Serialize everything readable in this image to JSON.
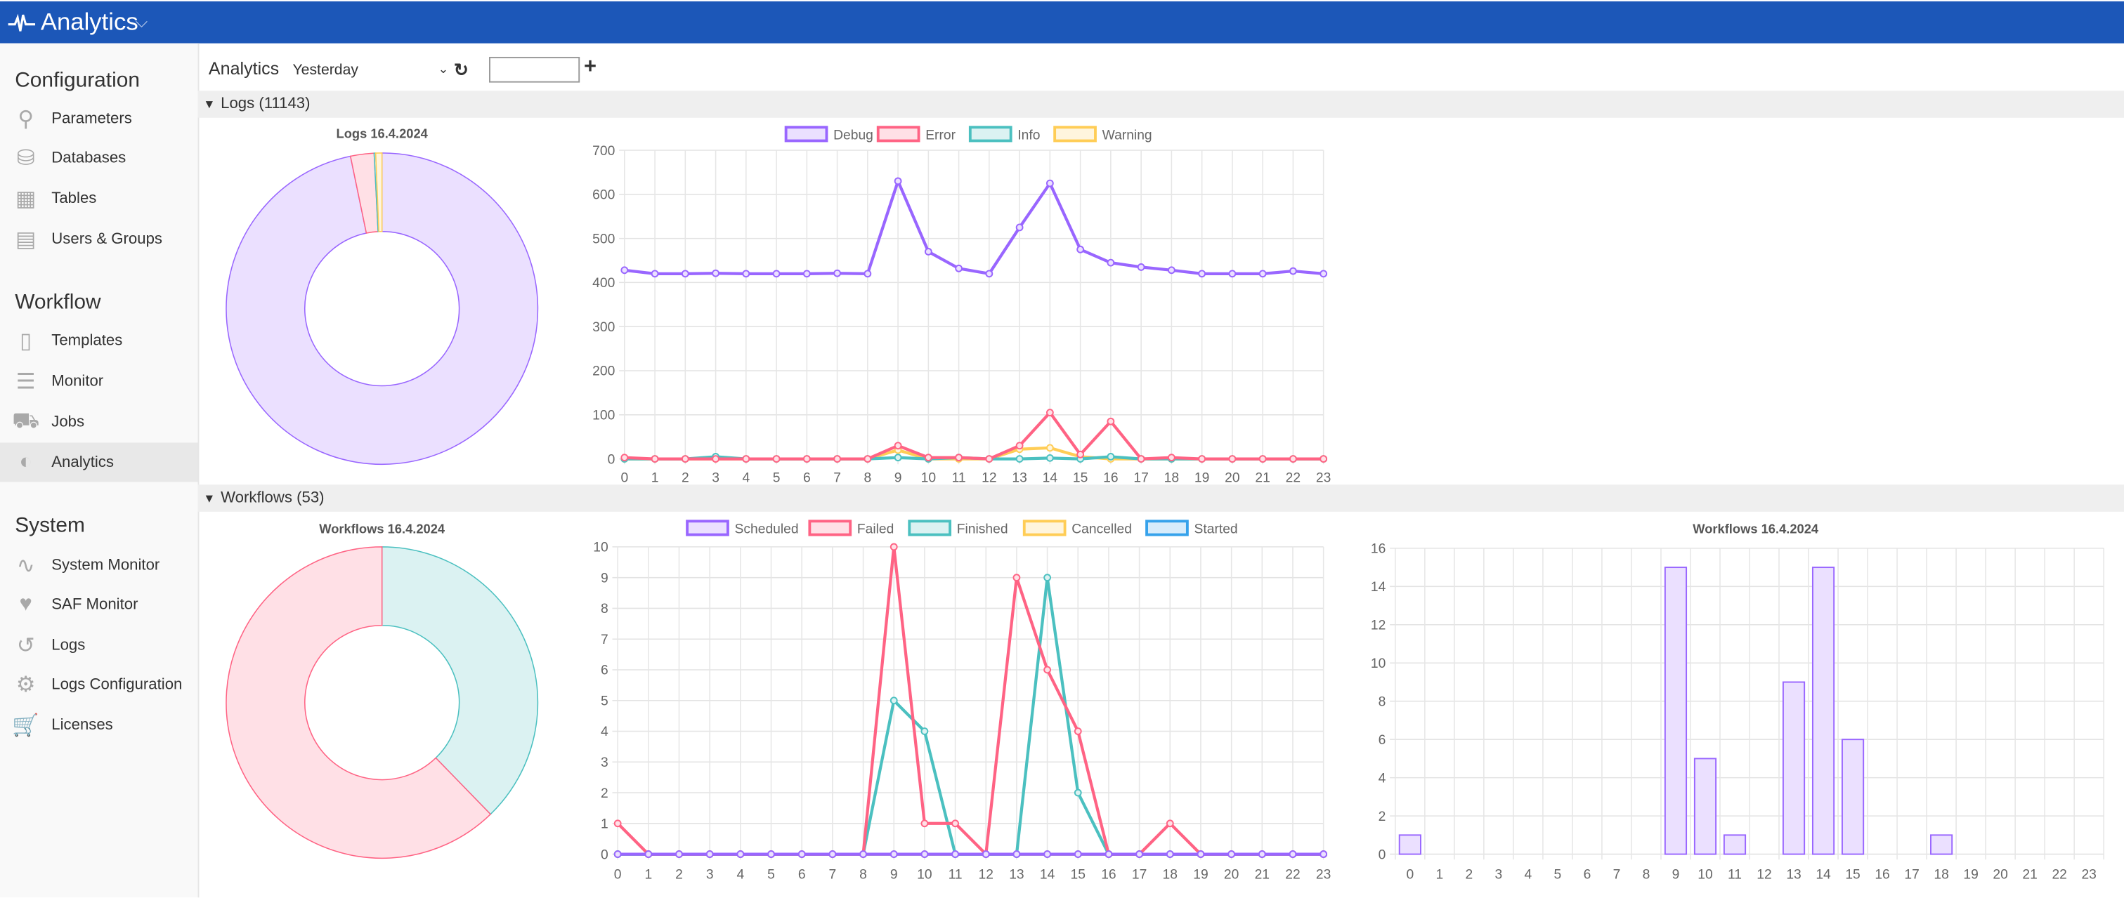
{
  "header": {
    "title": "Analytics",
    "icon": "pulse-icon",
    "color": "#1c57b8"
  },
  "sidebar": {
    "sections": [
      {
        "title": "Configuration",
        "items": [
          {
            "label": "Parameters",
            "icon": "key-icon"
          },
          {
            "label": "Databases",
            "icon": "database-icon"
          },
          {
            "label": "Tables",
            "icon": "table-icon"
          },
          {
            "label": "Users & Groups",
            "icon": "id-card-icon"
          }
        ]
      },
      {
        "title": "Workflow",
        "items": [
          {
            "label": "Templates",
            "icon": "chip-icon"
          },
          {
            "label": "Monitor",
            "icon": "server-icon"
          },
          {
            "label": "Jobs",
            "icon": "taxi-icon"
          },
          {
            "label": "Analytics",
            "icon": "dashboard-icon",
            "active": true
          }
        ]
      },
      {
        "title": "System",
        "items": [
          {
            "label": "System Monitor",
            "icon": "pulse-icon"
          },
          {
            "label": "SAF Monitor",
            "icon": "heartbeat-icon"
          },
          {
            "label": "Logs",
            "icon": "history-icon"
          },
          {
            "label": "Logs Configuration",
            "icon": "gear-icon"
          },
          {
            "label": "Licenses",
            "icon": "cart-icon"
          }
        ]
      }
    ]
  },
  "toolbar": {
    "label": "Analytics",
    "range": "Yesterday",
    "date_value": ""
  },
  "sections": {
    "logs": "Logs (11143)",
    "workflows": "Workflows (53)"
  },
  "chart_data": [
    {
      "id": "logs-donut",
      "type": "pie",
      "title": "Logs 16.4.2024",
      "donut": true,
      "slices": [
        {
          "value": 10781,
          "color": "#9966ff",
          "fill": "#ebe0ff"
        },
        {
          "value": 272,
          "color": "#ff6384",
          "fill": "#ffe0e6"
        },
        {
          "value": 18,
          "color": "#4bc0c0",
          "fill": "#dbf2f2"
        },
        {
          "value": 72,
          "color": "#ffcd56",
          "fill": "#fff5dd"
        }
      ]
    },
    {
      "id": "logs-line",
      "type": "line",
      "title": "",
      "categories": [
        "0",
        "1",
        "2",
        "3",
        "4",
        "5",
        "6",
        "7",
        "8",
        "9",
        "10",
        "11",
        "12",
        "13",
        "14",
        "15",
        "16",
        "17",
        "18",
        "19",
        "20",
        "21",
        "22",
        "23"
      ],
      "ylim": [
        0,
        700
      ],
      "ystep": 100,
      "grid": true,
      "legend": "top",
      "series": [
        {
          "name": "Debug",
          "color": "#9966ff",
          "fill": "#ebe0ff",
          "values": [
            428,
            420,
            420,
            421,
            420,
            420,
            420,
            421,
            420,
            630,
            470,
            432,
            420,
            525,
            625,
            475,
            445,
            435,
            428,
            420,
            420,
            420,
            426,
            420
          ]
        },
        {
          "name": "Error",
          "color": "#ff6384",
          "fill": "#ffe0e6",
          "values": [
            3,
            0,
            0,
            0,
            0,
            0,
            0,
            0,
            0,
            30,
            3,
            3,
            0,
            30,
            105,
            10,
            85,
            0,
            3,
            0,
            0,
            0,
            0,
            0
          ]
        },
        {
          "name": "Info",
          "color": "#4bc0c0",
          "fill": "#dbf2f2",
          "values": [
            0,
            0,
            0,
            5,
            0,
            0,
            0,
            0,
            0,
            3,
            0,
            3,
            0,
            0,
            2,
            0,
            5,
            0,
            0,
            0,
            0,
            0,
            0,
            0
          ]
        },
        {
          "name": "Warning",
          "color": "#ffcd56",
          "fill": "#fff5dd",
          "values": [
            0,
            0,
            0,
            0,
            0,
            0,
            0,
            0,
            0,
            20,
            0,
            0,
            0,
            22,
            25,
            5,
            0,
            0,
            0,
            0,
            0,
            0,
            0,
            0
          ]
        }
      ]
    },
    {
      "id": "workflows-donut",
      "type": "pie",
      "title": "Workflows 16.4.2024",
      "donut": true,
      "slices": [
        {
          "value": 20,
          "color": "#4bc0c0",
          "fill": "#dbf2f2"
        },
        {
          "value": 33,
          "color": "#ff6384",
          "fill": "#ffe0e6"
        }
      ]
    },
    {
      "id": "workflows-line",
      "type": "line",
      "title": "",
      "categories": [
        "0",
        "1",
        "2",
        "3",
        "4",
        "5",
        "6",
        "7",
        "8",
        "9",
        "10",
        "11",
        "12",
        "13",
        "14",
        "15",
        "16",
        "17",
        "18",
        "19",
        "20",
        "21",
        "22",
        "23"
      ],
      "ylim": [
        0,
        10
      ],
      "ystep": 1,
      "grid": true,
      "legend": "top",
      "series": [
        {
          "name": "Scheduled",
          "color": "#9966ff",
          "fill": "#ebe0ff",
          "values": [
            0,
            0,
            0,
            0,
            0,
            0,
            0,
            0,
            0,
            0,
            0,
            0,
            0,
            0,
            0,
            0,
            0,
            0,
            0,
            0,
            0,
            0,
            0,
            0
          ]
        },
        {
          "name": "Failed",
          "color": "#ff6384",
          "fill": "#ffe0e6",
          "values": [
            1,
            0,
            0,
            0,
            0,
            0,
            0,
            0,
            0,
            10,
            1,
            1,
            0,
            9,
            6,
            4,
            0,
            0,
            1,
            0,
            0,
            0,
            0,
            0
          ]
        },
        {
          "name": "Finished",
          "color": "#4bc0c0",
          "fill": "#dbf2f2",
          "values": [
            0,
            0,
            0,
            0,
            0,
            0,
            0,
            0,
            0,
            5,
            4,
            0,
            0,
            0,
            9,
            2,
            0,
            0,
            0,
            0,
            0,
            0,
            0,
            0
          ]
        },
        {
          "name": "Cancelled",
          "color": "#ffcd56",
          "fill": "#fff5dd",
          "values": [
            0,
            0,
            0,
            0,
            0,
            0,
            0,
            0,
            0,
            0,
            0,
            0,
            0,
            0,
            0,
            0,
            0,
            0,
            0,
            0,
            0,
            0,
            0,
            0
          ]
        },
        {
          "name": "Started",
          "color": "#36a2eb",
          "fill": "#d7ecfb",
          "values": [
            0,
            0,
            0,
            0,
            0,
            0,
            0,
            0,
            0,
            0,
            0,
            0,
            0,
            0,
            0,
            0,
            0,
            0,
            0,
            0,
            0,
            0,
            0,
            0
          ]
        }
      ]
    },
    {
      "id": "workflows-bar",
      "type": "bar",
      "title": "Workflows 16.4.2024",
      "categories": [
        "0",
        "1",
        "2",
        "3",
        "4",
        "5",
        "6",
        "7",
        "8",
        "9",
        "10",
        "11",
        "12",
        "13",
        "14",
        "15",
        "16",
        "17",
        "18",
        "19",
        "20",
        "21",
        "22",
        "23"
      ],
      "values": [
        1,
        0,
        0,
        0,
        0,
        0,
        0,
        0,
        0,
        15,
        5,
        1,
        0,
        9,
        15,
        6,
        0,
        0,
        1,
        0,
        0,
        0,
        0,
        0
      ],
      "ylim": [
        0,
        16
      ],
      "ystep": 2,
      "grid": true,
      "color": "#9966ff",
      "fill": "#ebe0ff"
    }
  ]
}
